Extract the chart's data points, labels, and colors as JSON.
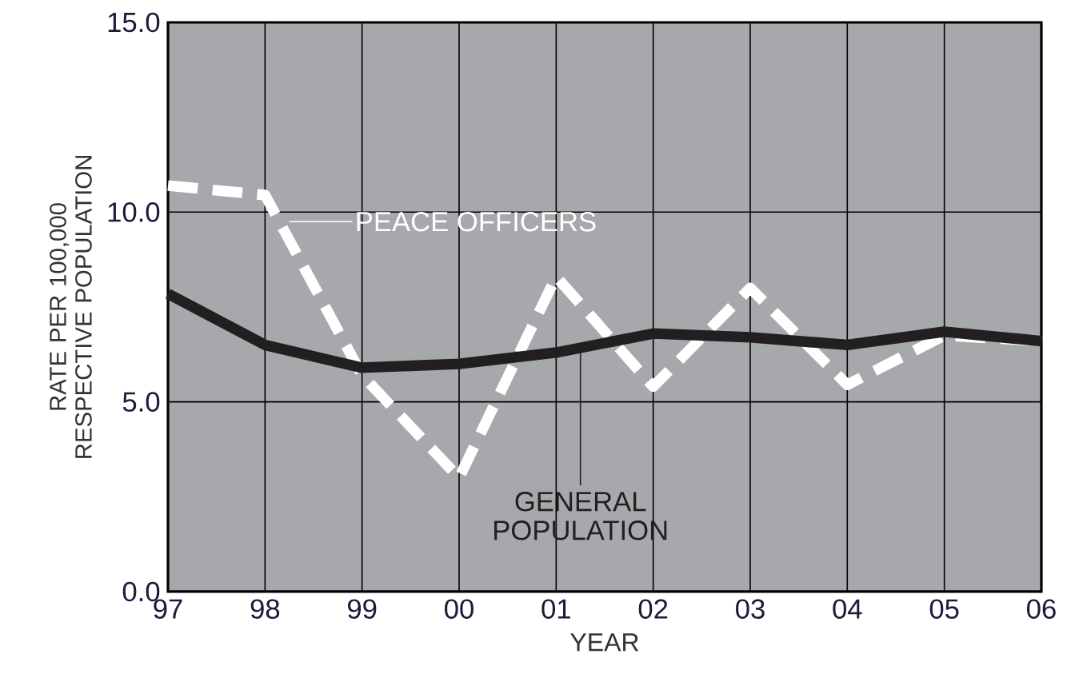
{
  "chart_data": {
    "type": "line",
    "xlabel": "YEAR",
    "ylabel": "RATE PER 100,000\nRESPECTIVE POPULATION",
    "categories": [
      "97",
      "98",
      "99",
      "00",
      "01",
      "02",
      "03",
      "04",
      "05",
      "06"
    ],
    "series": [
      {
        "name": "PEACE OFFICERS",
        "color": "#ffffff",
        "line_style": "dashed",
        "values": [
          10.7,
          10.45,
          5.7,
          3.0,
          8.3,
          5.4,
          8.0,
          5.45,
          6.75,
          6.6
        ]
      },
      {
        "name": "GENERAL POPULATION",
        "color": "#231f20",
        "line_style": "solid",
        "values": [
          7.85,
          6.5,
          5.9,
          6.0,
          6.3,
          6.8,
          6.7,
          6.5,
          6.85,
          6.6
        ]
      }
    ],
    "ylim": [
      0,
      15
    ],
    "yticks": [
      {
        "value": 0,
        "label": "0.0"
      },
      {
        "value": 5,
        "label": "5.0"
      },
      {
        "value": 10,
        "label": "10.0"
      },
      {
        "value": 15,
        "label": "15.0"
      }
    ],
    "grid": true
  }
}
